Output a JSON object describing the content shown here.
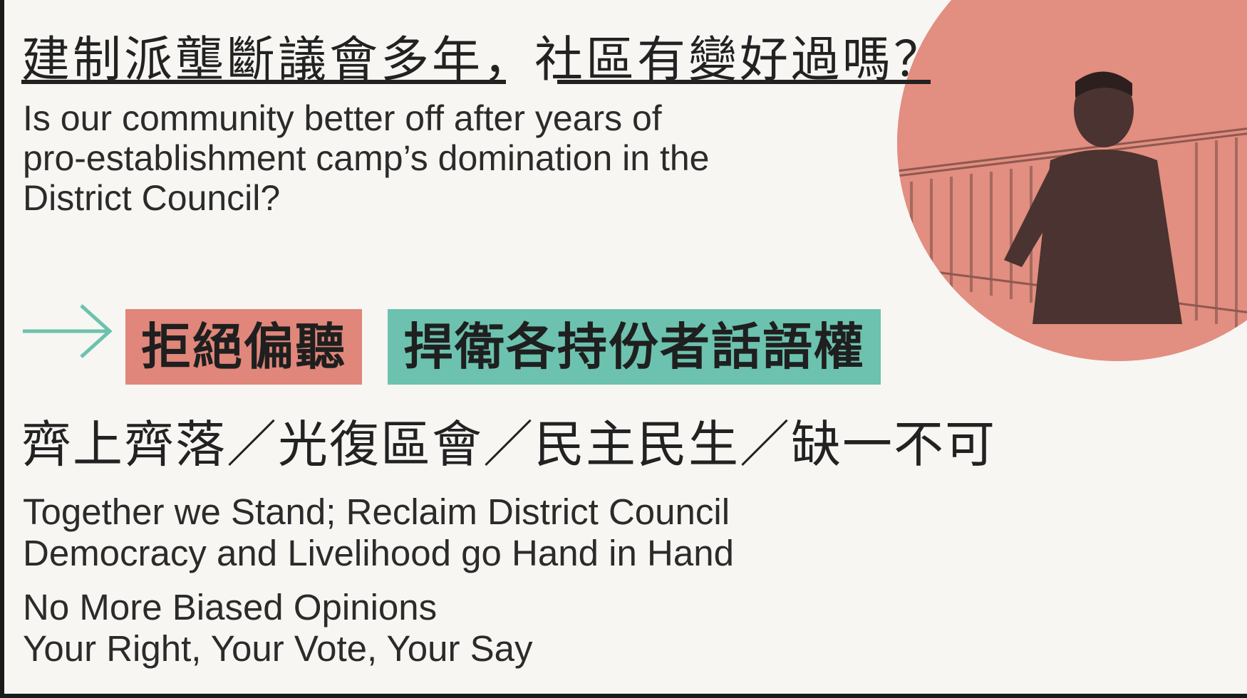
{
  "headline": {
    "part1": "建制派壟斷議會多年，",
    "part2": "社區有變好過嗎？"
  },
  "question_en": [
    "Is our community better off after years of",
    "pro-establishment camp’s domination in the",
    "District Council?"
  ],
  "tags": {
    "red": "拒絕偏聽",
    "teal": "捍衛各持份者話語權"
  },
  "slogan_zh": "齊上齊落／光復區會／民主民生／缺一不可",
  "motto_en": [
    "Together we Stand;  Reclaim District Council",
    "Democracy and Livelihood go Hand in Hand"
  ],
  "motto_en_2": [
    "No More Biased Opinions",
    "Your Right, Your Vote, Your Say"
  ],
  "colors": {
    "tag_red": "#e0867a",
    "tag_teal": "#6cc2ae",
    "arrow": "#6cc2ae",
    "photo_tint": "#e18b7d"
  },
  "icons": [
    "arrow-right-icon"
  ]
}
